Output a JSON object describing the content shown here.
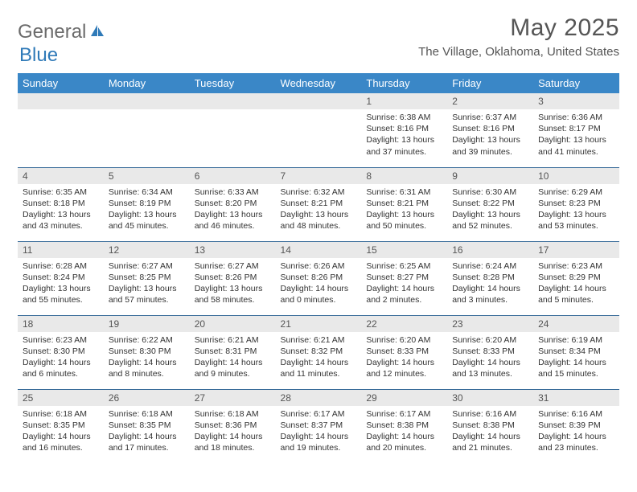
{
  "logo": {
    "text1": "General",
    "text2": "Blue"
  },
  "title": "May 2025",
  "location": "The Village, Oklahoma, United States",
  "colors": {
    "header_bg": "#3a87c7",
    "header_text": "#ffffff",
    "daynum_bg": "#e9e9e9",
    "cell_border": "#3a6d9a",
    "title_color": "#555555",
    "logo_gray": "#6b6b6b",
    "logo_blue": "#2f7ab8"
  },
  "daysOfWeek": [
    "Sunday",
    "Monday",
    "Tuesday",
    "Wednesday",
    "Thursday",
    "Friday",
    "Saturday"
  ],
  "weeks": [
    [
      null,
      null,
      null,
      null,
      {
        "n": "1",
        "sr": "6:38 AM",
        "ss": "8:16 PM",
        "dl": "13 hours and 37 minutes."
      },
      {
        "n": "2",
        "sr": "6:37 AM",
        "ss": "8:16 PM",
        "dl": "13 hours and 39 minutes."
      },
      {
        "n": "3",
        "sr": "6:36 AM",
        "ss": "8:17 PM",
        "dl": "13 hours and 41 minutes."
      }
    ],
    [
      {
        "n": "4",
        "sr": "6:35 AM",
        "ss": "8:18 PM",
        "dl": "13 hours and 43 minutes."
      },
      {
        "n": "5",
        "sr": "6:34 AM",
        "ss": "8:19 PM",
        "dl": "13 hours and 45 minutes."
      },
      {
        "n": "6",
        "sr": "6:33 AM",
        "ss": "8:20 PM",
        "dl": "13 hours and 46 minutes."
      },
      {
        "n": "7",
        "sr": "6:32 AM",
        "ss": "8:21 PM",
        "dl": "13 hours and 48 minutes."
      },
      {
        "n": "8",
        "sr": "6:31 AM",
        "ss": "8:21 PM",
        "dl": "13 hours and 50 minutes."
      },
      {
        "n": "9",
        "sr": "6:30 AM",
        "ss": "8:22 PM",
        "dl": "13 hours and 52 minutes."
      },
      {
        "n": "10",
        "sr": "6:29 AM",
        "ss": "8:23 PM",
        "dl": "13 hours and 53 minutes."
      }
    ],
    [
      {
        "n": "11",
        "sr": "6:28 AM",
        "ss": "8:24 PM",
        "dl": "13 hours and 55 minutes."
      },
      {
        "n": "12",
        "sr": "6:27 AM",
        "ss": "8:25 PM",
        "dl": "13 hours and 57 minutes."
      },
      {
        "n": "13",
        "sr": "6:27 AM",
        "ss": "8:26 PM",
        "dl": "13 hours and 58 minutes."
      },
      {
        "n": "14",
        "sr": "6:26 AM",
        "ss": "8:26 PM",
        "dl": "14 hours and 0 minutes."
      },
      {
        "n": "15",
        "sr": "6:25 AM",
        "ss": "8:27 PM",
        "dl": "14 hours and 2 minutes."
      },
      {
        "n": "16",
        "sr": "6:24 AM",
        "ss": "8:28 PM",
        "dl": "14 hours and 3 minutes."
      },
      {
        "n": "17",
        "sr": "6:23 AM",
        "ss": "8:29 PM",
        "dl": "14 hours and 5 minutes."
      }
    ],
    [
      {
        "n": "18",
        "sr": "6:23 AM",
        "ss": "8:30 PM",
        "dl": "14 hours and 6 minutes."
      },
      {
        "n": "19",
        "sr": "6:22 AM",
        "ss": "8:30 PM",
        "dl": "14 hours and 8 minutes."
      },
      {
        "n": "20",
        "sr": "6:21 AM",
        "ss": "8:31 PM",
        "dl": "14 hours and 9 minutes."
      },
      {
        "n": "21",
        "sr": "6:21 AM",
        "ss": "8:32 PM",
        "dl": "14 hours and 11 minutes."
      },
      {
        "n": "22",
        "sr": "6:20 AM",
        "ss": "8:33 PM",
        "dl": "14 hours and 12 minutes."
      },
      {
        "n": "23",
        "sr": "6:20 AM",
        "ss": "8:33 PM",
        "dl": "14 hours and 13 minutes."
      },
      {
        "n": "24",
        "sr": "6:19 AM",
        "ss": "8:34 PM",
        "dl": "14 hours and 15 minutes."
      }
    ],
    [
      {
        "n": "25",
        "sr": "6:18 AM",
        "ss": "8:35 PM",
        "dl": "14 hours and 16 minutes."
      },
      {
        "n": "26",
        "sr": "6:18 AM",
        "ss": "8:35 PM",
        "dl": "14 hours and 17 minutes."
      },
      {
        "n": "27",
        "sr": "6:18 AM",
        "ss": "8:36 PM",
        "dl": "14 hours and 18 minutes."
      },
      {
        "n": "28",
        "sr": "6:17 AM",
        "ss": "8:37 PM",
        "dl": "14 hours and 19 minutes."
      },
      {
        "n": "29",
        "sr": "6:17 AM",
        "ss": "8:38 PM",
        "dl": "14 hours and 20 minutes."
      },
      {
        "n": "30",
        "sr": "6:16 AM",
        "ss": "8:38 PM",
        "dl": "14 hours and 21 minutes."
      },
      {
        "n": "31",
        "sr": "6:16 AM",
        "ss": "8:39 PM",
        "dl": "14 hours and 23 minutes."
      }
    ]
  ],
  "labels": {
    "sunrise": "Sunrise:",
    "sunset": "Sunset:",
    "daylight": "Daylight:"
  }
}
